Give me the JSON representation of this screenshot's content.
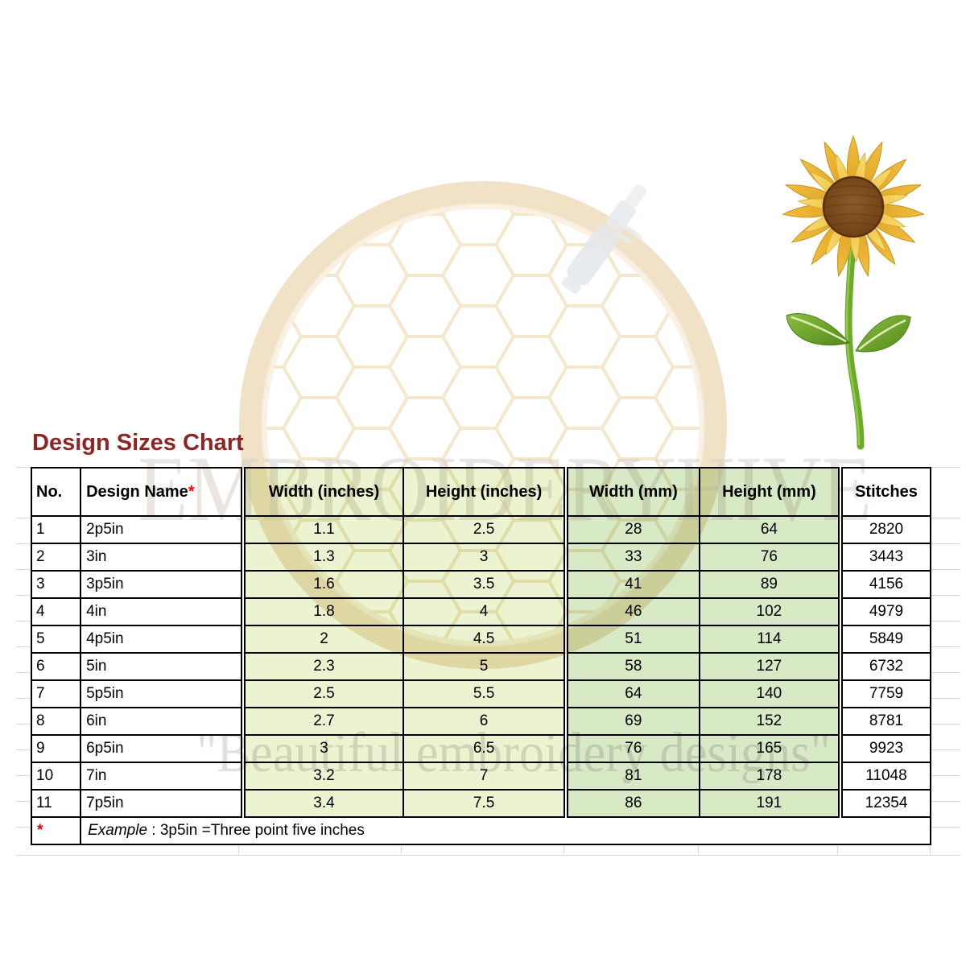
{
  "page": {
    "title": "Design Sizes Chart",
    "title_color": "#8c2626"
  },
  "watermark": {
    "brand_text": "EMBROIDERYHIVE",
    "tagline_text": "\"Beautiful embroidery designs\"",
    "hoop_color": "#eedbb9",
    "honeycomb_color": "#f2e1bf",
    "brand_text_color": "#d9cfc7",
    "tagline_text_color": "#c2c2c2",
    "needle_color": "#e6e9ec"
  },
  "graphics": {
    "sunflower": {
      "petal_dark": "#dfa124",
      "petal_light": "#f8dc74",
      "center_brown": "#6a3c13",
      "stem_green": "#6cab29",
      "leaf_green": "#55881c"
    }
  },
  "table": {
    "columns": [
      {
        "key": "no",
        "label": "No."
      },
      {
        "key": "name",
        "label": "Design Name",
        "asterisk": "*"
      },
      {
        "key": "w_in",
        "label": "Width (inches)"
      },
      {
        "key": "h_in",
        "label": "Height (inches)"
      },
      {
        "key": "w_mm",
        "label": "Width (mm)"
      },
      {
        "key": "h_mm",
        "label": "Height (mm)"
      },
      {
        "key": "stitches",
        "label": "Stitches"
      }
    ],
    "rows": [
      [
        "1",
        "2p5in",
        "1.1",
        "2.5",
        "28",
        "64",
        "2820"
      ],
      [
        "2",
        "3in",
        "1.3",
        "3",
        "33",
        "76",
        "3443"
      ],
      [
        "3",
        "3p5in",
        "1.6",
        "3.5",
        "41",
        "89",
        "4156"
      ],
      [
        "4",
        "4in",
        "1.8",
        "4",
        "46",
        "102",
        "4979"
      ],
      [
        "5",
        "4p5in",
        "2",
        "4.5",
        "51",
        "114",
        "5849"
      ],
      [
        "6",
        "5in",
        "2.3",
        "5",
        "58",
        "127",
        "6732"
      ],
      [
        "7",
        "5p5in",
        "2.5",
        "5.5",
        "64",
        "140",
        "7759"
      ],
      [
        "8",
        "6in",
        "2.7",
        "6",
        "69",
        "152",
        "8781"
      ],
      [
        "9",
        "6p5in",
        "3",
        "6.5",
        "76",
        "165",
        "9923"
      ],
      [
        "10",
        "7in",
        "3.2",
        "7",
        "81",
        "178",
        "11048"
      ],
      [
        "11",
        "7p5in",
        "3.4",
        "7.5",
        "86",
        "191",
        "12354"
      ]
    ],
    "footer": {
      "marker": "*",
      "example_word": "Example",
      "example_rest": " : 3p5in =Three point five inches"
    },
    "colors": {
      "inches_bg": "#ebf3d1",
      "mm_bg": "#d8e9c6",
      "border": "#000000",
      "footnote_red": "#e30000"
    }
  }
}
